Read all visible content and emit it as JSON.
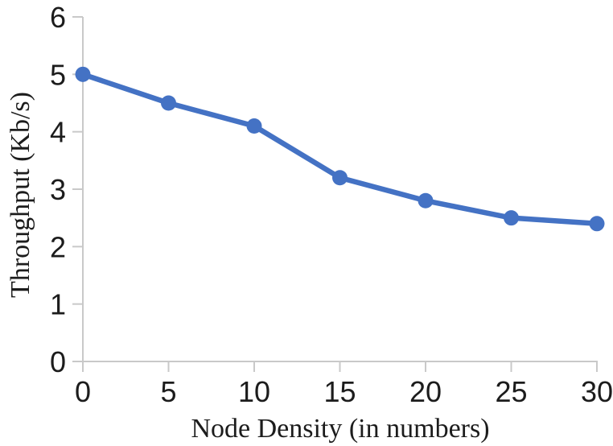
{
  "chart_data": {
    "type": "line",
    "title": "",
    "xlabel": "Node Density (in numbers)",
    "ylabel": "Throughput (Kb/s)",
    "x": [
      0,
      5,
      10,
      15,
      20,
      25,
      30
    ],
    "series": [
      {
        "name": "throughput",
        "values": [
          5.0,
          4.5,
          4.1,
          3.2,
          2.8,
          2.5,
          2.4
        ],
        "color": "#4472C4",
        "marker": "circle"
      }
    ],
    "x_tick_labels": [
      "0",
      "5",
      "10",
      "15",
      "20",
      "25",
      "30"
    ],
    "y_tick_labels": [
      "0",
      "1",
      "2",
      "3",
      "4",
      "5",
      "6"
    ],
    "xlim": [
      0,
      30
    ],
    "ylim": [
      0,
      6
    ],
    "grid": false,
    "legend_visible": false,
    "axis_color": "#c9c9c9",
    "text_color": "#1c1c1c"
  }
}
